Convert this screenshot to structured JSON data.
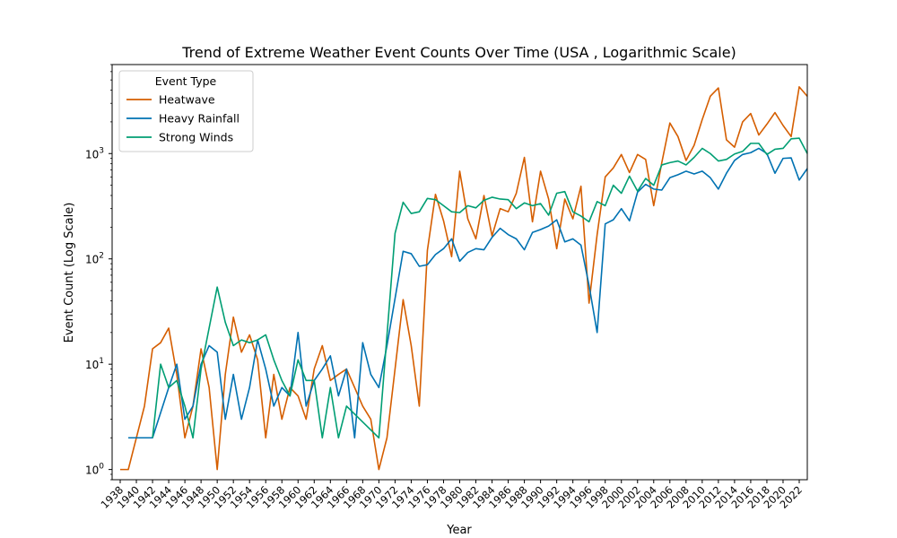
{
  "chart_data": {
    "type": "line",
    "title": "Trend of Extreme Weather Event Counts Over Time (USA , Logarithmic Scale)",
    "xlabel": "Year",
    "ylabel": "Event Count (Log Scale)",
    "xlim": [
      1937,
      2023
    ],
    "ylim": [
      0.8,
      7000
    ],
    "yscale": "log",
    "grid": false,
    "legend": {
      "title": "Event Type",
      "placement": "top-left"
    },
    "x_ticks": [
      1938,
      1940,
      1942,
      1944,
      1946,
      1948,
      1950,
      1952,
      1954,
      1956,
      1958,
      1960,
      1962,
      1964,
      1966,
      1968,
      1970,
      1972,
      1974,
      1976,
      1978,
      1980,
      1982,
      1984,
      1986,
      1988,
      1990,
      1992,
      1994,
      1996,
      1998,
      2000,
      2002,
      2004,
      2006,
      2008,
      2010,
      2012,
      2014,
      2016,
      2018,
      2020,
      2022
    ],
    "y_ticks": [
      {
        "value": 1,
        "base": "10",
        "exp": "0"
      },
      {
        "value": 10,
        "base": "10",
        "exp": "1"
      },
      {
        "value": 100,
        "base": "10",
        "exp": "2"
      },
      {
        "value": 1000,
        "base": "10",
        "exp": "3"
      }
    ],
    "series": [
      {
        "name": "Heatwave",
        "color": "#d55e00",
        "points": [
          [
            1938,
            1
          ],
          [
            1939,
            1
          ],
          [
            1941,
            4
          ],
          [
            1942,
            14
          ],
          [
            1943,
            16
          ],
          [
            1944,
            22
          ],
          [
            1945,
            8
          ],
          [
            1946,
            2
          ],
          [
            1947,
            4
          ],
          [
            1948,
            14
          ],
          [
            1949,
            6
          ],
          [
            1950,
            1
          ],
          [
            1951,
            8
          ],
          [
            1952,
            28
          ],
          [
            1953,
            13
          ],
          [
            1954,
            19
          ],
          [
            1955,
            11
          ],
          [
            1956,
            2
          ],
          [
            1957,
            8
          ],
          [
            1958,
            3
          ],
          [
            1959,
            6
          ],
          [
            1960,
            5
          ],
          [
            1961,
            3
          ],
          [
            1962,
            9
          ],
          [
            1963,
            15
          ],
          [
            1964,
            7
          ],
          [
            1965,
            8
          ],
          [
            1966,
            9
          ],
          [
            1967,
            6
          ],
          [
            1968,
            4
          ],
          [
            1969,
            3
          ],
          [
            1970,
            1
          ],
          [
            1971,
            2
          ],
          [
            1972,
            9
          ],
          [
            1973,
            41
          ],
          [
            1974,
            15
          ],
          [
            1975,
            4
          ],
          [
            1976,
            120
          ],
          [
            1977,
            410
          ],
          [
            1978,
            230
          ],
          [
            1979,
            105
          ],
          [
            1980,
            680
          ],
          [
            1981,
            240
          ],
          [
            1982,
            155
          ],
          [
            1983,
            400
          ],
          [
            1984,
            165
          ],
          [
            1985,
            300
          ],
          [
            1986,
            280
          ],
          [
            1987,
            420
          ],
          [
            1988,
            920
          ],
          [
            1989,
            225
          ],
          [
            1990,
            680
          ],
          [
            1991,
            370
          ],
          [
            1992,
            125
          ],
          [
            1993,
            370
          ],
          [
            1994,
            240
          ],
          [
            1995,
            490
          ],
          [
            1996,
            38
          ],
          [
            1997,
            170
          ],
          [
            1998,
            600
          ],
          [
            1999,
            730
          ],
          [
            2000,
            980
          ],
          [
            2001,
            660
          ],
          [
            2002,
            980
          ],
          [
            2003,
            880
          ],
          [
            2004,
            320
          ],
          [
            2005,
            820
          ],
          [
            2006,
            1950
          ],
          [
            2007,
            1450
          ],
          [
            2008,
            860
          ],
          [
            2009,
            1200
          ],
          [
            2010,
            2100
          ],
          [
            2011,
            3500
          ],
          [
            2012,
            4200
          ],
          [
            2013,
            1350
          ],
          [
            2014,
            1150
          ],
          [
            2015,
            2000
          ],
          [
            2016,
            2400
          ],
          [
            2017,
            1500
          ],
          [
            2018,
            1900
          ],
          [
            2019,
            2450
          ],
          [
            2020,
            1850
          ],
          [
            2021,
            1450
          ],
          [
            2022,
            4300
          ],
          [
            2023,
            3500
          ]
        ]
      },
      {
        "name": "Heavy Rainfall",
        "color": "#0072b2",
        "points": [
          [
            1939,
            2
          ],
          [
            1940,
            2
          ],
          [
            1941,
            2
          ],
          [
            1942,
            2
          ],
          [
            1944,
            6
          ],
          [
            1945,
            10
          ],
          [
            1946,
            3
          ],
          [
            1947,
            4
          ],
          [
            1948,
            10
          ],
          [
            1949,
            15
          ],
          [
            1950,
            13
          ],
          [
            1951,
            3
          ],
          [
            1952,
            8
          ],
          [
            1953,
            3
          ],
          [
            1954,
            6
          ],
          [
            1955,
            17
          ],
          [
            1956,
            9
          ],
          [
            1957,
            4
          ],
          [
            1958,
            6
          ],
          [
            1959,
            5
          ],
          [
            1960,
            20
          ],
          [
            1961,
            4
          ],
          [
            1962,
            7
          ],
          [
            1963,
            9
          ],
          [
            1964,
            12
          ],
          [
            1965,
            5
          ],
          [
            1966,
            9
          ],
          [
            1967,
            2
          ],
          [
            1968,
            16
          ],
          [
            1969,
            8
          ],
          [
            1970,
            6
          ],
          [
            1971,
            15
          ],
          [
            1973,
            118
          ],
          [
            1974,
            112
          ],
          [
            1975,
            85
          ],
          [
            1976,
            88
          ],
          [
            1977,
            110
          ],
          [
            1978,
            125
          ],
          [
            1979,
            155
          ],
          [
            1980,
            95
          ],
          [
            1981,
            115
          ],
          [
            1982,
            125
          ],
          [
            1983,
            122
          ],
          [
            1984,
            160
          ],
          [
            1985,
            195
          ],
          [
            1986,
            170
          ],
          [
            1987,
            155
          ],
          [
            1988,
            122
          ],
          [
            1989,
            178
          ],
          [
            1990,
            190
          ],
          [
            1991,
            205
          ],
          [
            1992,
            235
          ],
          [
            1993,
            145
          ],
          [
            1994,
            155
          ],
          [
            1995,
            135
          ],
          [
            1996,
            56
          ],
          [
            1997,
            20
          ],
          [
            1998,
            215
          ],
          [
            1999,
            235
          ],
          [
            2000,
            300
          ],
          [
            2001,
            230
          ],
          [
            2002,
            430
          ],
          [
            2003,
            510
          ],
          [
            2004,
            460
          ],
          [
            2005,
            450
          ],
          [
            2006,
            590
          ],
          [
            2007,
            630
          ],
          [
            2008,
            680
          ],
          [
            2009,
            640
          ],
          [
            2010,
            680
          ],
          [
            2011,
            590
          ],
          [
            2012,
            460
          ],
          [
            2013,
            650
          ],
          [
            2014,
            860
          ],
          [
            2015,
            980
          ],
          [
            2016,
            1020
          ],
          [
            2017,
            1120
          ],
          [
            2018,
            1000
          ],
          [
            2019,
            650
          ],
          [
            2020,
            900
          ],
          [
            2021,
            910
          ],
          [
            2022,
            560
          ],
          [
            2023,
            720
          ]
        ]
      },
      {
        "name": "Strong Winds",
        "color": "#009e73",
        "points": [
          [
            1942,
            2
          ],
          [
            1943,
            10
          ],
          [
            1944,
            6
          ],
          [
            1945,
            7
          ],
          [
            1946,
            4
          ],
          [
            1947,
            2
          ],
          [
            1948,
            9
          ],
          [
            1950,
            54
          ],
          [
            1951,
            25
          ],
          [
            1952,
            15
          ],
          [
            1953,
            17
          ],
          [
            1954,
            16
          ],
          [
            1955,
            17
          ],
          [
            1956,
            19
          ],
          [
            1957,
            11
          ],
          [
            1958,
            7
          ],
          [
            1959,
            5
          ],
          [
            1960,
            11
          ],
          [
            1961,
            7
          ],
          [
            1962,
            7
          ],
          [
            1963,
            2
          ],
          [
            1964,
            6
          ],
          [
            1965,
            2
          ],
          [
            1966,
            4
          ],
          [
            1970,
            2
          ],
          [
            1972,
            175
          ],
          [
            1973,
            345
          ],
          [
            1974,
            270
          ],
          [
            1975,
            280
          ],
          [
            1976,
            375
          ],
          [
            1977,
            365
          ],
          [
            1978,
            320
          ],
          [
            1979,
            280
          ],
          [
            1980,
            275
          ],
          [
            1981,
            320
          ],
          [
            1982,
            305
          ],
          [
            1983,
            360
          ],
          [
            1984,
            385
          ],
          [
            1985,
            370
          ],
          [
            1986,
            365
          ],
          [
            1987,
            300
          ],
          [
            1988,
            340
          ],
          [
            1989,
            320
          ],
          [
            1990,
            335
          ],
          [
            1991,
            260
          ],
          [
            1992,
            420
          ],
          [
            1993,
            435
          ],
          [
            1994,
            280
          ],
          [
            1995,
            255
          ],
          [
            1996,
            225
          ],
          [
            1997,
            350
          ],
          [
            1998,
            320
          ],
          [
            1999,
            500
          ],
          [
            2000,
            420
          ],
          [
            2001,
            610
          ],
          [
            2002,
            440
          ],
          [
            2003,
            580
          ],
          [
            2004,
            500
          ],
          [
            2005,
            780
          ],
          [
            2006,
            820
          ],
          [
            2007,
            850
          ],
          [
            2008,
            780
          ],
          [
            2009,
            920
          ],
          [
            2010,
            1120
          ],
          [
            2011,
            1000
          ],
          [
            2012,
            850
          ],
          [
            2013,
            880
          ],
          [
            2014,
            990
          ],
          [
            2015,
            1050
          ],
          [
            2016,
            1250
          ],
          [
            2017,
            1250
          ],
          [
            2018,
            980
          ],
          [
            2019,
            1100
          ],
          [
            2020,
            1120
          ],
          [
            2021,
            1380
          ],
          [
            2022,
            1400
          ],
          [
            2023,
            1000
          ]
        ]
      }
    ]
  }
}
